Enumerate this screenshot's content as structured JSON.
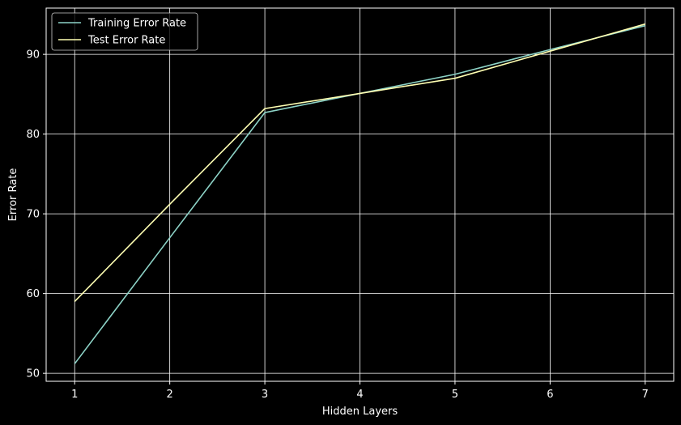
{
  "chart_data": {
    "type": "line",
    "title": "",
    "xlabel": "Hidden Layers",
    "ylabel": "Error Rate",
    "x": [
      1,
      2,
      3,
      4,
      5,
      6,
      7
    ],
    "xticks": [
      "1",
      "2",
      "3",
      "4",
      "5",
      "6",
      "7"
    ],
    "yticks": [
      "50",
      "60",
      "70",
      "80",
      "90"
    ],
    "xlim": [
      0.7,
      7.3
    ],
    "ylim": [
      49.0,
      95.8
    ],
    "grid": true,
    "legend_position": "top-left",
    "background": "#000000",
    "foreground": "#ffffff",
    "series": [
      {
        "name": "Training Error Rate",
        "color": "#8dd3c7",
        "values": [
          51.2,
          67.0,
          82.7,
          85.1,
          87.5,
          90.6,
          93.6
        ]
      },
      {
        "name": "Test Error Rate",
        "color": "#ffffb3",
        "values": [
          59.0,
          71.2,
          83.2,
          85.1,
          87.0,
          90.4,
          93.8
        ]
      }
    ]
  }
}
